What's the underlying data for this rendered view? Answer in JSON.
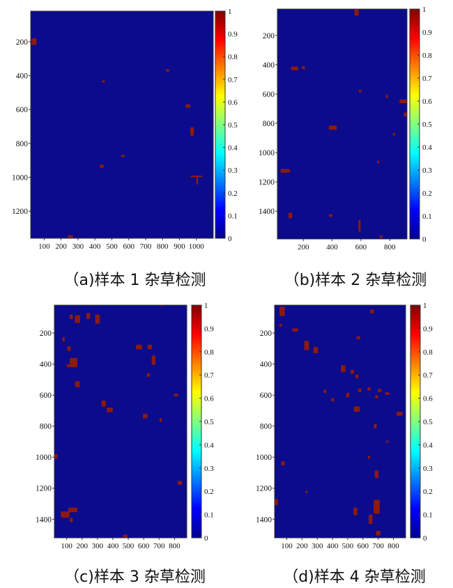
{
  "colors": {
    "background": "#0B0B8C",
    "weed": "#8B1A10"
  },
  "colorbar": {
    "stops": [
      "#00008F",
      "#0000FF",
      "#0080FF",
      "#00FFFF",
      "#80FF80",
      "#FFFF00",
      "#FF8000",
      "#FF0000",
      "#800000"
    ],
    "tick_labels": [
      "0",
      "0.1",
      "0.2",
      "0.3",
      "0.4",
      "0.5",
      "0.6",
      "0.7",
      "0.8",
      "0.9",
      "1"
    ]
  },
  "chart_data": [
    {
      "type": "heatmap",
      "caption": "（a)样本 1 杂草检测",
      "xlim": [
        20,
        1100
      ],
      "ylim": [
        1360,
        20
      ],
      "x_ticks": [
        100,
        200,
        300,
        400,
        500,
        600,
        700,
        800,
        900,
        1000
      ],
      "x_tick_labels": [
        "100",
        "200",
        "300",
        "400",
        "500",
        "600",
        "700",
        "800",
        "900",
        "1000"
      ],
      "y_ticks": [
        200,
        400,
        600,
        800,
        1000,
        1200
      ],
      "y_tick_labels": [
        "200",
        "400",
        "600",
        "800",
        "1000",
        "1200"
      ],
      "value_range": [
        0,
        1
      ],
      "weed_patches": [
        {
          "x": 40,
          "y": 200,
          "w": 30,
          "h": 40
        },
        {
          "x": 450,
          "y": 435,
          "w": 20,
          "h": 12
        },
        {
          "x": 830,
          "y": 370,
          "w": 22,
          "h": 14
        },
        {
          "x": 950,
          "y": 580,
          "w": 28,
          "h": 20
        },
        {
          "x": 975,
          "y": 730,
          "w": 22,
          "h": 50
        },
        {
          "x": 440,
          "y": 935,
          "w": 24,
          "h": 18
        },
        {
          "x": 565,
          "y": 875,
          "w": 20,
          "h": 14
        },
        {
          "x": 1000,
          "y": 995,
          "w": 70,
          "h": 10
        },
        {
          "x": 1005,
          "y": 1020,
          "w": 10,
          "h": 50
        },
        {
          "x": 255,
          "y": 1350,
          "w": 30,
          "h": 16
        }
      ]
    },
    {
      "type": "heatmap",
      "caption": "（b)样本 2 杂草检测",
      "xlim": [
        20,
        920
      ],
      "ylim": [
        1590,
        20
      ],
      "x_ticks": [
        200,
        400,
        600,
        800
      ],
      "x_tick_labels": [
        "200",
        "400",
        "600",
        "800"
      ],
      "y_ticks": [
        200,
        400,
        600,
        800,
        1000,
        1200,
        1400
      ],
      "y_tick_labels": [
        "200",
        "400",
        "600",
        "800",
        "1000",
        "1200",
        "1400"
      ],
      "value_range": [
        0,
        1
      ],
      "weed_patches": [
        {
          "x": 570,
          "y": 40,
          "w": 30,
          "h": 50
        },
        {
          "x": 140,
          "y": 425,
          "w": 50,
          "h": 25
        },
        {
          "x": 200,
          "y": 420,
          "w": 25,
          "h": 20
        },
        {
          "x": 595,
          "y": 580,
          "w": 20,
          "h": 18
        },
        {
          "x": 780,
          "y": 615,
          "w": 15,
          "h": 25
        },
        {
          "x": 895,
          "y": 650,
          "w": 55,
          "h": 25
        },
        {
          "x": 910,
          "y": 740,
          "w": 25,
          "h": 30
        },
        {
          "x": 405,
          "y": 830,
          "w": 55,
          "h": 30
        },
        {
          "x": 830,
          "y": 875,
          "w": 18,
          "h": 18
        },
        {
          "x": 720,
          "y": 1065,
          "w": 15,
          "h": 20
        },
        {
          "x": 75,
          "y": 1125,
          "w": 65,
          "h": 25
        },
        {
          "x": 110,
          "y": 1430,
          "w": 25,
          "h": 40
        },
        {
          "x": 390,
          "y": 1430,
          "w": 25,
          "h": 18
        },
        {
          "x": 590,
          "y": 1500,
          "w": 15,
          "h": 80
        },
        {
          "x": 740,
          "y": 1575,
          "w": 18,
          "h": 20
        }
      ]
    },
    {
      "type": "heatmap",
      "caption": "（c)样本 3 杂草检测",
      "xlim": [
        20,
        880
      ],
      "ylim": [
        1520,
        20
      ],
      "x_ticks": [
        100,
        200,
        300,
        400,
        500,
        600,
        700,
        800
      ],
      "x_tick_labels": [
        "100",
        "200",
        "300",
        "400",
        "500",
        "600",
        "700",
        "800"
      ],
      "y_ticks": [
        200,
        400,
        600,
        800,
        1000,
        1200,
        1400
      ],
      "y_tick_labels": [
        "200",
        "400",
        "600",
        "800",
        "1000",
        "1200",
        "1400"
      ],
      "value_range": [
        0,
        1
      ],
      "weed_patches": [
        {
          "x": 130,
          "y": 95,
          "w": 20,
          "h": 30
        },
        {
          "x": 170,
          "y": 110,
          "w": 35,
          "h": 50
        },
        {
          "x": 240,
          "y": 90,
          "w": 25,
          "h": 40
        },
        {
          "x": 300,
          "y": 110,
          "w": 30,
          "h": 60
        },
        {
          "x": 720,
          "y": 20,
          "w": 15,
          "h": 12
        },
        {
          "x": 80,
          "y": 240,
          "w": 15,
          "h": 30
        },
        {
          "x": 115,
          "y": 300,
          "w": 22,
          "h": 30
        },
        {
          "x": 145,
          "y": 390,
          "w": 50,
          "h": 60
        },
        {
          "x": 110,
          "y": 410,
          "w": 20,
          "h": 20
        },
        {
          "x": 570,
          "y": 290,
          "w": 40,
          "h": 30
        },
        {
          "x": 640,
          "y": 290,
          "w": 30,
          "h": 30
        },
        {
          "x": 665,
          "y": 375,
          "w": 25,
          "h": 60
        },
        {
          "x": 630,
          "y": 470,
          "w": 20,
          "h": 25
        },
        {
          "x": 170,
          "y": 530,
          "w": 30,
          "h": 40
        },
        {
          "x": 340,
          "y": 655,
          "w": 28,
          "h": 40
        },
        {
          "x": 380,
          "y": 695,
          "w": 40,
          "h": 30
        },
        {
          "x": 610,
          "y": 735,
          "w": 30,
          "h": 30
        },
        {
          "x": 710,
          "y": 760,
          "w": 15,
          "h": 25
        },
        {
          "x": 810,
          "y": 600,
          "w": 30,
          "h": 16
        },
        {
          "x": 30,
          "y": 995,
          "w": 20,
          "h": 30
        },
        {
          "x": 835,
          "y": 1165,
          "w": 30,
          "h": 25
        },
        {
          "x": 90,
          "y": 1370,
          "w": 55,
          "h": 40
        },
        {
          "x": 140,
          "y": 1340,
          "w": 60,
          "h": 30
        },
        {
          "x": 130,
          "y": 1405,
          "w": 20,
          "h": 30
        },
        {
          "x": 480,
          "y": 1510,
          "w": 30,
          "h": 20
        }
      ]
    },
    {
      "type": "heatmap",
      "caption": "（d)样本 4 杂草检测",
      "xlim": [
        20,
        880
      ],
      "ylim": [
        1520,
        20
      ],
      "x_ticks": [
        100,
        200,
        300,
        400,
        500,
        600,
        700,
        800
      ],
      "x_tick_labels": [
        "100",
        "200",
        "300",
        "400",
        "500",
        "600",
        "700",
        "800"
      ],
      "y_ticks": [
        200,
        400,
        600,
        800,
        1000,
        1200,
        1400
      ],
      "y_tick_labels": [
        "200",
        "400",
        "600",
        "800",
        "1000",
        "1200",
        "1400"
      ],
      "value_range": [
        0,
        1
      ],
      "weed_patches": [
        {
          "x": 70,
          "y": 60,
          "w": 35,
          "h": 60
        },
        {
          "x": 60,
          "y": 150,
          "w": 18,
          "h": 18
        },
        {
          "x": 155,
          "y": 180,
          "w": 40,
          "h": 20
        },
        {
          "x": 660,
          "y": 60,
          "w": 25,
          "h": 25
        },
        {
          "x": 570,
          "y": 230,
          "w": 25,
          "h": 20
        },
        {
          "x": 230,
          "y": 280,
          "w": 30,
          "h": 60
        },
        {
          "x": 290,
          "y": 310,
          "w": 30,
          "h": 40
        },
        {
          "x": 470,
          "y": 430,
          "w": 30,
          "h": 45
        },
        {
          "x": 530,
          "y": 450,
          "w": 25,
          "h": 25
        },
        {
          "x": 560,
          "y": 480,
          "w": 20,
          "h": 25
        },
        {
          "x": 350,
          "y": 575,
          "w": 20,
          "h": 20
        },
        {
          "x": 400,
          "y": 630,
          "w": 20,
          "h": 20
        },
        {
          "x": 500,
          "y": 600,
          "w": 20,
          "h": 30
        },
        {
          "x": 560,
          "y": 690,
          "w": 40,
          "h": 35
        },
        {
          "x": 580,
          "y": 570,
          "w": 20,
          "h": 25
        },
        {
          "x": 640,
          "y": 560,
          "w": 20,
          "h": 20
        },
        {
          "x": 690,
          "y": 610,
          "w": 20,
          "h": 20
        },
        {
          "x": 710,
          "y": 570,
          "w": 25,
          "h": 20
        },
        {
          "x": 760,
          "y": 590,
          "w": 30,
          "h": 16
        },
        {
          "x": 840,
          "y": 720,
          "w": 40,
          "h": 25
        },
        {
          "x": 680,
          "y": 800,
          "w": 20,
          "h": 30
        },
        {
          "x": 760,
          "y": 900,
          "w": 15,
          "h": 15
        },
        {
          "x": 640,
          "y": 1000,
          "w": 15,
          "h": 20
        },
        {
          "x": 75,
          "y": 1040,
          "w": 25,
          "h": 25
        },
        {
          "x": 690,
          "y": 1110,
          "w": 25,
          "h": 50
        },
        {
          "x": 30,
          "y": 1290,
          "w": 25,
          "h": 40
        },
        {
          "x": 230,
          "y": 1225,
          "w": 15,
          "h": 16
        },
        {
          "x": 550,
          "y": 1350,
          "w": 25,
          "h": 50
        },
        {
          "x": 690,
          "y": 1320,
          "w": 40,
          "h": 90
        },
        {
          "x": 650,
          "y": 1400,
          "w": 25,
          "h": 60
        },
        {
          "x": 700,
          "y": 1490,
          "w": 30,
          "h": 30
        }
      ]
    }
  ]
}
